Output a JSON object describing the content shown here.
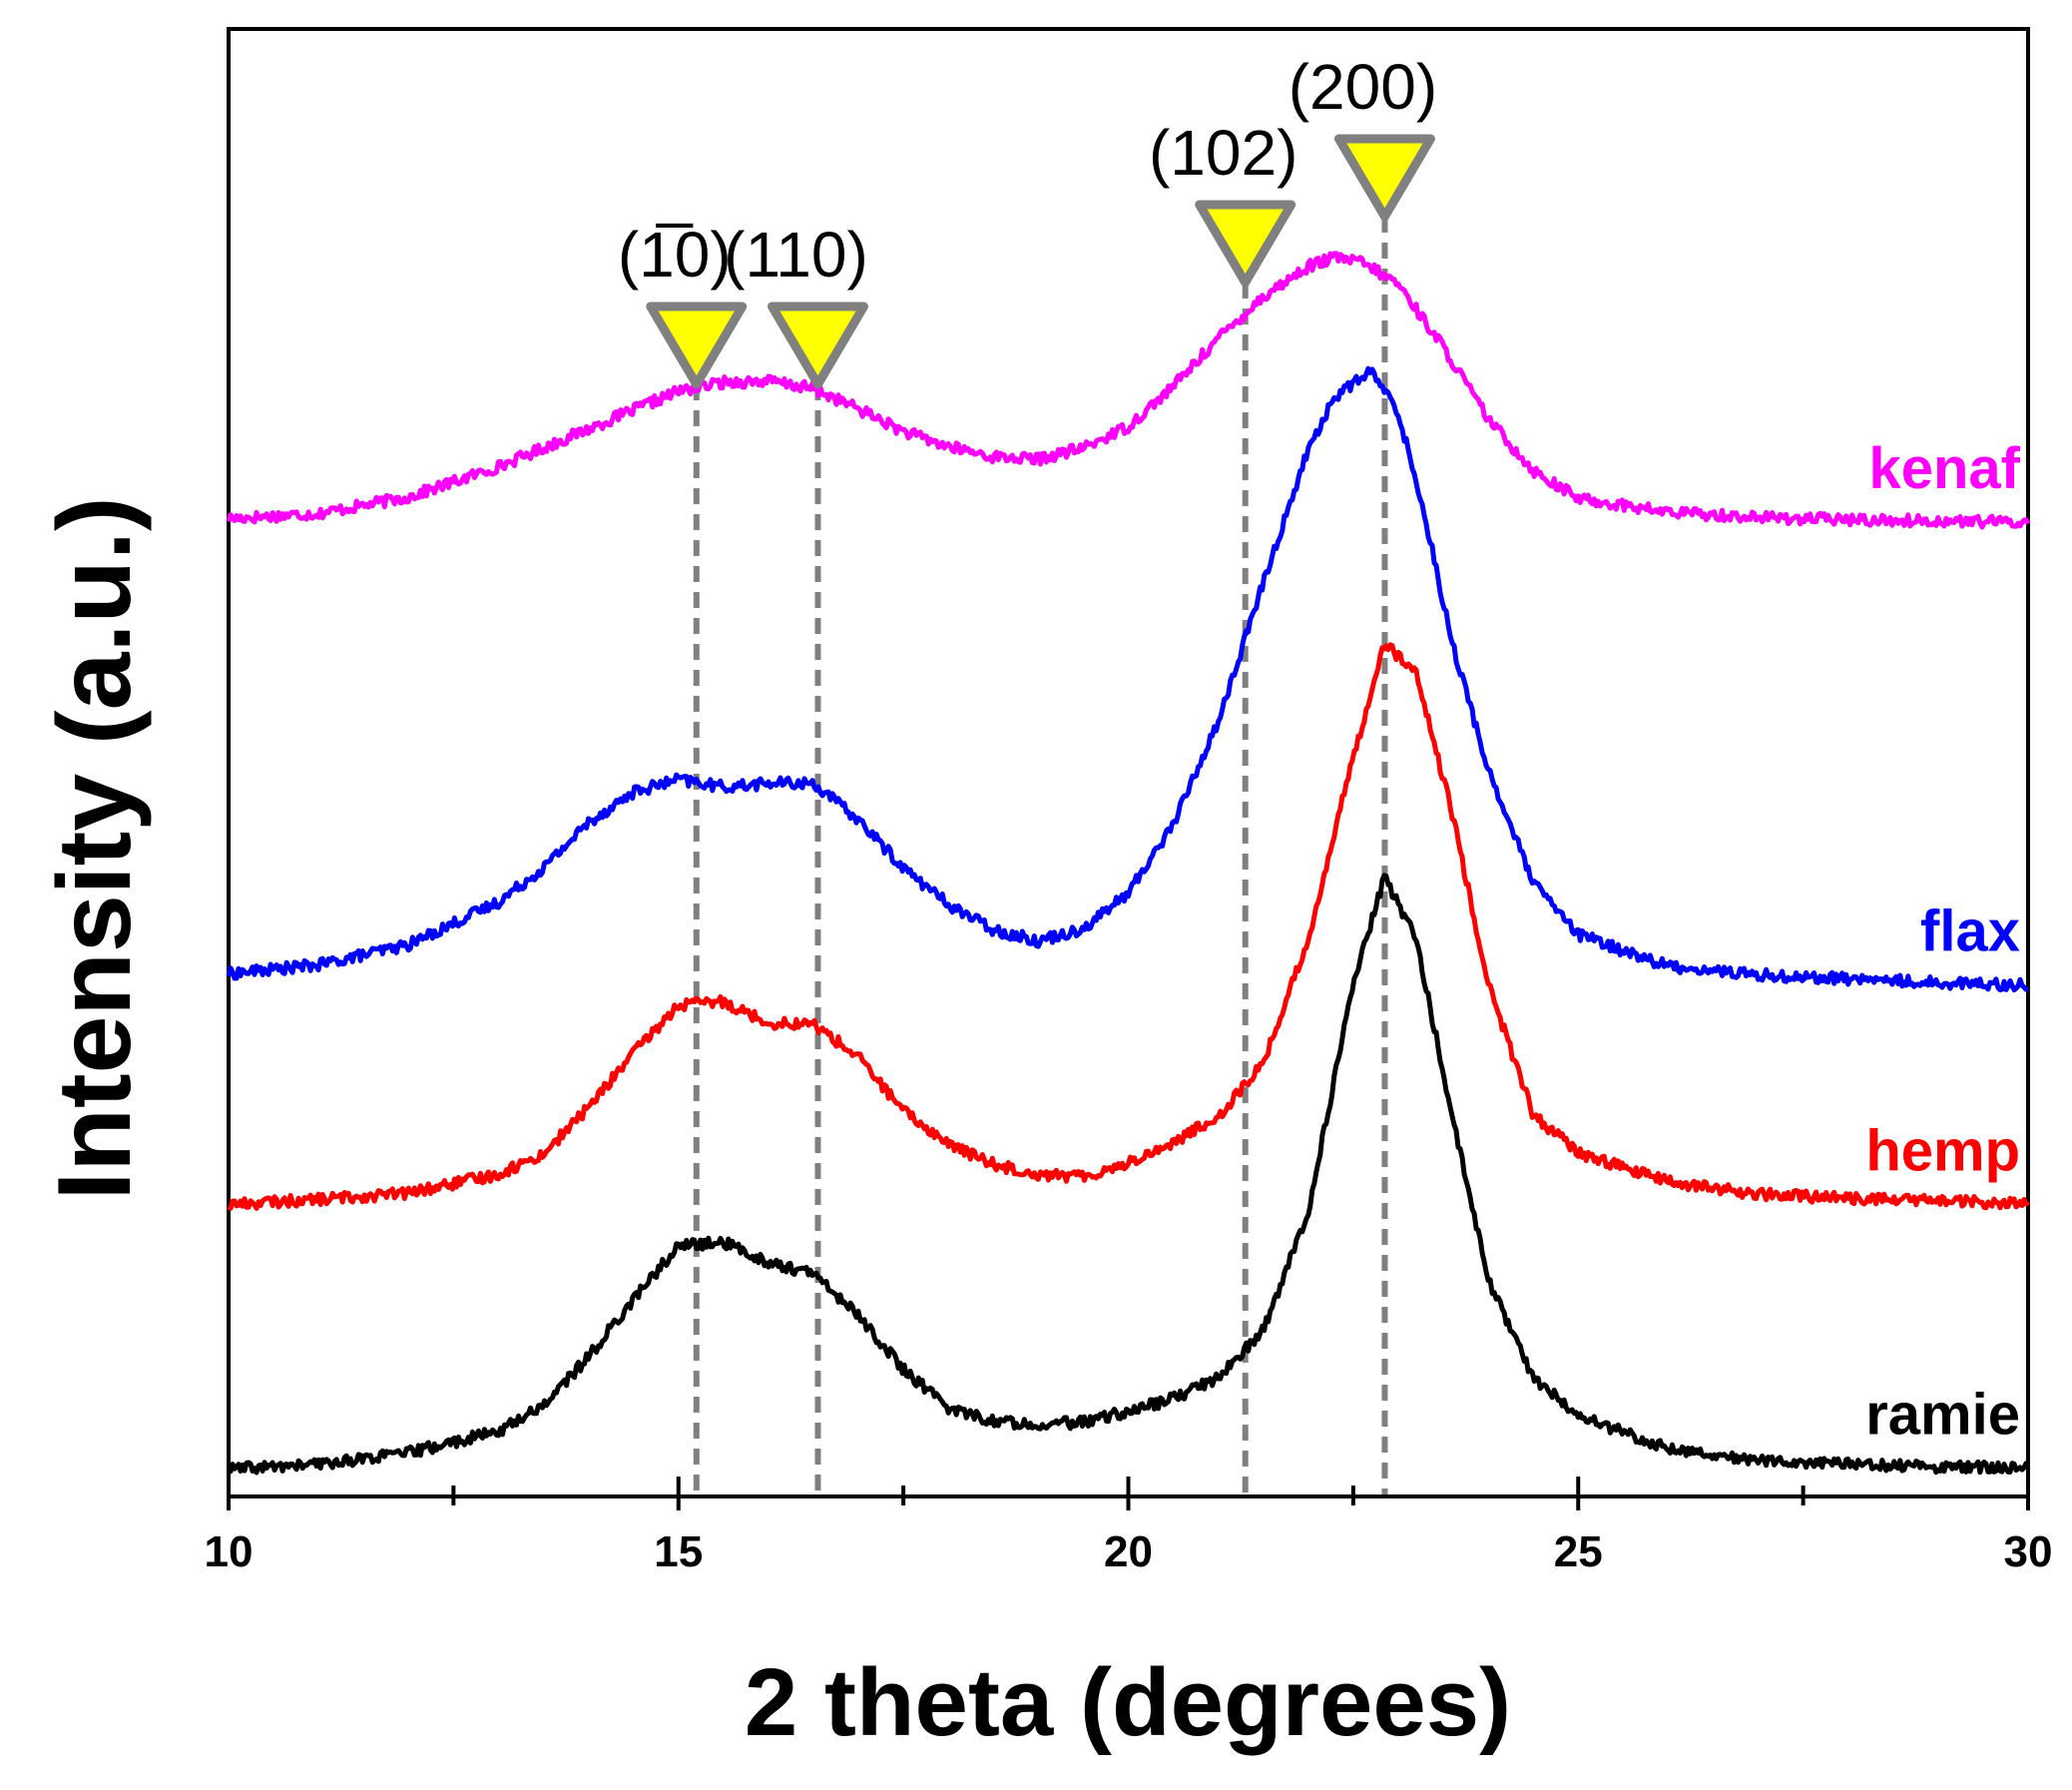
{
  "chart_data": {
    "type": "line",
    "title": "",
    "xlabel": "2 theta (degrees)",
    "ylabel": "Intensity (a.u.)",
    "xlim": [
      10,
      30
    ],
    "ylim": [
      0,
      100
    ],
    "xticks": [
      10,
      15,
      20,
      25,
      30
    ],
    "xtick_labels": [
      "10",
      "15",
      "20",
      "25",
      "30"
    ],
    "yticks_shown": false,
    "grid": false,
    "reference_lines": [
      {
        "label": "(1̅0)",
        "x": 15.2,
        "marker_color": "#ffff00",
        "line_color": "#808080"
      },
      {
        "label": "(110)",
        "x": 16.55,
        "marker_color": "#ffff00",
        "line_color": "#808080"
      },
      {
        "label": "(102)",
        "x": 21.3,
        "marker_color": "#ffff00",
        "line_color": "#808080"
      },
      {
        "label": "(200)",
        "x": 22.85,
        "marker_color": "#ffff00",
        "line_color": "#808080"
      }
    ],
    "series": [
      {
        "name": "kenaf",
        "color": "#ff00ff",
        "x": [
          10,
          11,
          12,
          13,
          14,
          15,
          15.5,
          16,
          16.5,
          17,
          17.5,
          18,
          18.5,
          19,
          19.5,
          20,
          20.5,
          21,
          21.5,
          22,
          22.3,
          22.6,
          23,
          23.5,
          24,
          24.5,
          25,
          26,
          27,
          28,
          29,
          30
        ],
        "values": [
          75.9,
          76.3,
          77.6,
          80.0,
          83.0,
          86.0,
          86.7,
          86.8,
          86.2,
          84.6,
          82.8,
          81.6,
          80.8,
          80.6,
          81.5,
          83.2,
          86.4,
          90.2,
          93.5,
          95.9,
          96.6,
          96.2,
          94.5,
          89.5,
          83.8,
          79.7,
          77.5,
          76.4,
          76.0,
          75.8,
          75.7,
          75.6
        ]
      },
      {
        "name": "flax",
        "color": "#0000ff",
        "x": [
          10,
          11,
          12,
          13,
          13.5,
          14,
          14.5,
          15,
          15.5,
          16,
          16.5,
          17,
          17.5,
          18,
          18.5,
          19,
          19.5,
          20,
          20.5,
          21,
          21.5,
          22,
          22.3,
          22.7,
          23,
          23.3,
          23.6,
          24,
          24.5,
          25,
          26,
          27,
          28,
          29,
          30
        ],
        "values": [
          39.8,
          40.5,
          42.1,
          45.5,
          48.2,
          51.8,
          54.2,
          55.2,
          54.6,
          54.9,
          54.9,
          52.0,
          48.2,
          45.3,
          43.3,
          42.4,
          43.4,
          46.2,
          51.7,
          59.8,
          70.8,
          81.4,
          85.6,
          87.6,
          84.3,
          76.0,
          66.0,
          56.0,
          47.0,
          42.9,
          40.4,
          39.7,
          39.4,
          39.1,
          38.9
        ]
      },
      {
        "name": "hemp",
        "color": "#ff0000",
        "x": [
          10,
          11,
          12,
          13,
          13.5,
          14,
          14.5,
          15,
          15.5,
          16,
          16.5,
          17,
          17.5,
          18,
          18.5,
          19,
          19.5,
          20,
          20.5,
          21,
          21.5,
          22,
          22.5,
          22.85,
          23.2,
          23.6,
          24,
          24.5,
          25,
          26,
          27,
          28,
          29,
          30
        ],
        "values": [
          21.5,
          21.9,
          22.4,
          23.9,
          25.5,
          29.2,
          33.5,
          37.3,
          37.6,
          35.9,
          35.8,
          33.2,
          28.9,
          26.3,
          24.7,
          23.9,
          23.7,
          24.8,
          26.4,
          28.5,
          32.7,
          42.5,
          57.0,
          66.1,
          63.5,
          52.5,
          39.0,
          28.6,
          25.6,
          23.3,
          22.3,
          22.0,
          21.8,
          21.5
        ]
      },
      {
        "name": "ramie",
        "color": "#000000",
        "x": [
          10,
          11,
          12,
          13,
          13.5,
          14,
          14.5,
          15,
          15.5,
          16,
          16.5,
          17,
          17.5,
          18,
          18.5,
          19,
          19.5,
          20,
          20.5,
          21,
          21.5,
          22,
          22.5,
          22.85,
          23.2,
          23.6,
          24,
          24.5,
          25,
          26,
          27,
          28,
          29,
          30
        ],
        "values": [
          0.5,
          0.9,
          1.8,
          3.5,
          5.6,
          9.4,
          14.0,
          18.2,
          18.5,
          16.9,
          16.0,
          12.7,
          8.4,
          5.4,
          4.3,
          4.1,
          4.2,
          5.1,
          6.1,
          7.8,
          11.5,
          20.9,
          39.0,
          47.5,
          42.5,
          28.5,
          15.5,
          7.8,
          4.7,
          2.2,
          1.2,
          0.9,
          0.7,
          0.6
        ]
      }
    ]
  }
}
